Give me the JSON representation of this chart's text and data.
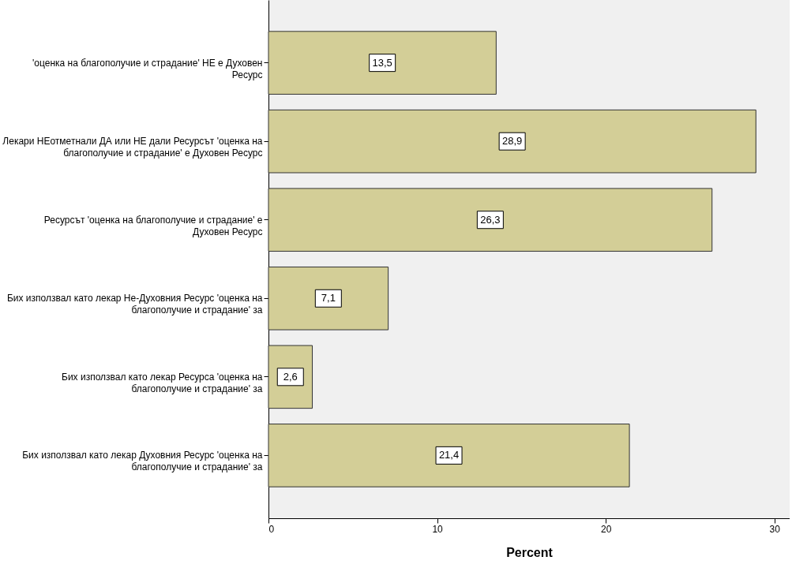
{
  "chart_data": {
    "type": "bar",
    "orientation": "horizontal",
    "xlabel": "Percent",
    "categories": [
      "'оценка на благополучие и страдание' НЕ е Духовен Ресурс",
      "Лекари НЕотметнали ДА или НЕ дали Ресурсът 'оценка на благополучие и страдание' е Духовен Ресурс",
      "Ресурсът 'оценка на благополучие и страдание' е Духовен Ресурс",
      "Бих използвал като лекар Не-Духовния Ресурс 'оценка на благополучие и страдание' за",
      "Бих използвал като лекар Ресурса 'оценка на благополучие и страдание' за",
      "Бих използвал като лекар Духовния Ресурс 'оценка на благополучие и страдание' за"
    ],
    "values": [
      13.5,
      28.9,
      26.3,
      7.1,
      2.6,
      21.4
    ],
    "value_labels": [
      "13,5",
      "28,9",
      "26,3",
      "7,1",
      "2,6",
      "21,4"
    ],
    "color": "#d3ce97",
    "xlim": [
      0,
      30.9
    ],
    "xticks": [
      0,
      10,
      20,
      30
    ],
    "grid": false
  }
}
